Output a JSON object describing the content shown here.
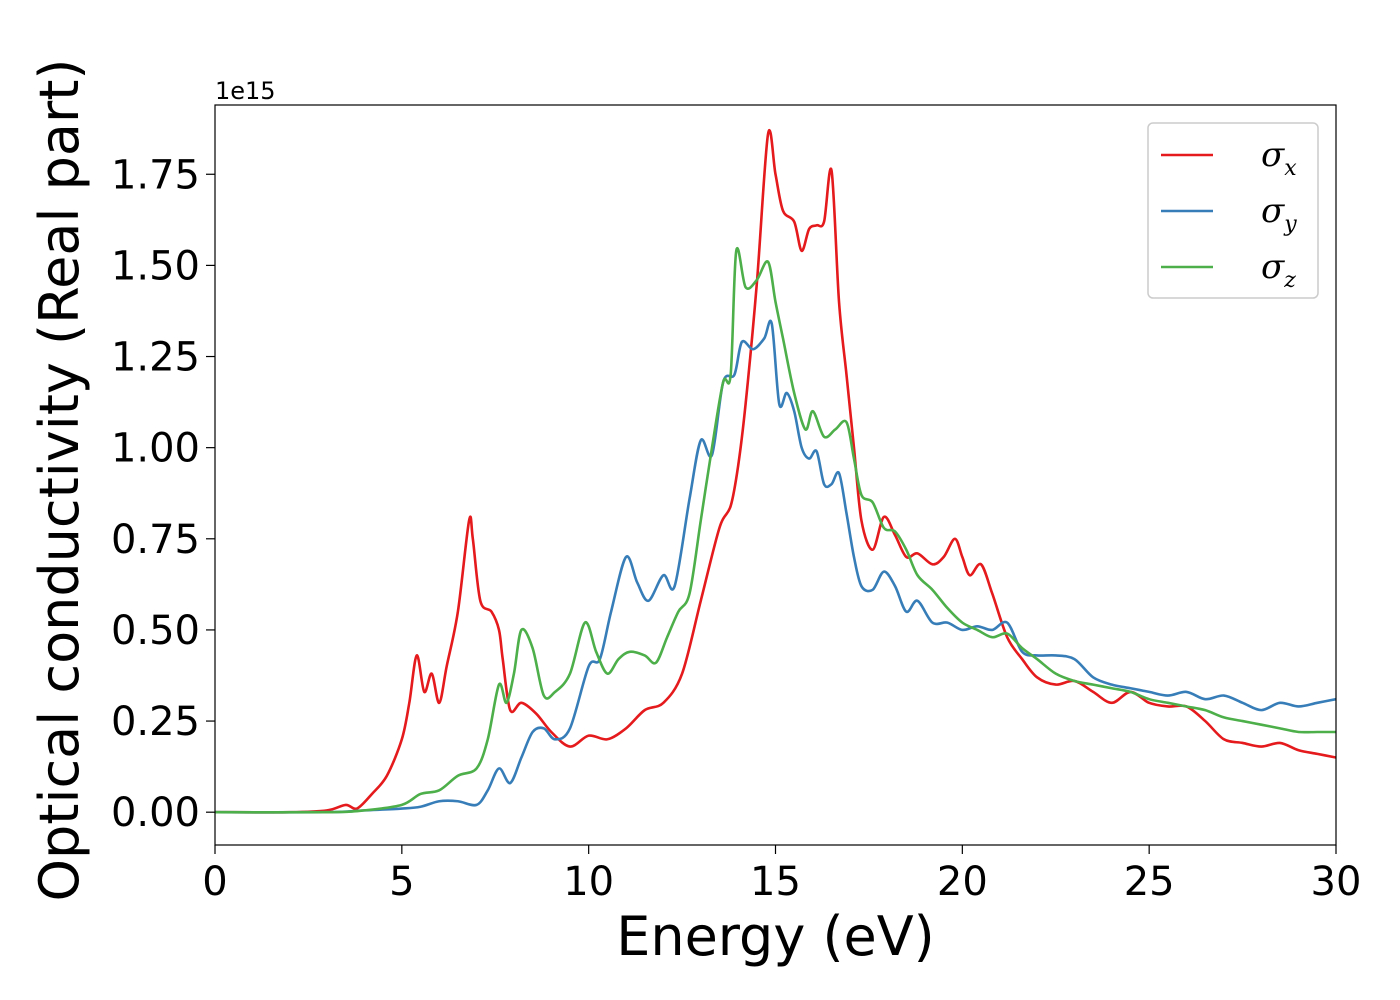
{
  "chart_data": {
    "type": "line",
    "xlabel": "Energy (eV)",
    "ylabel": "Optical conductivity (Real part)",
    "y_offset_label": "1e15",
    "xlim": [
      0,
      30
    ],
    "ylim": [
      -0.09,
      1.94
    ],
    "x_ticks": [
      0,
      5,
      10,
      15,
      20,
      25,
      30
    ],
    "x_tick_labels": [
      "0",
      "5",
      "10",
      "15",
      "20",
      "25",
      "30"
    ],
    "y_ticks": [
      0.0,
      0.25,
      0.5,
      0.75,
      1.0,
      1.25,
      1.5,
      1.75
    ],
    "y_tick_labels": [
      "0.00",
      "0.25",
      "0.50",
      "0.75",
      "1.00",
      "1.25",
      "1.50",
      "1.75"
    ],
    "grid": false,
    "legend_position": "top-right",
    "series": [
      {
        "name": "σx",
        "base": "σ",
        "sub": "x",
        "color": "#e41a1c",
        "x": [
          0,
          2,
          3,
          3.5,
          3.8,
          4.2,
          4.6,
          5.0,
          5.2,
          5.4,
          5.6,
          5.8,
          6.0,
          6.2,
          6.5,
          6.8,
          6.9,
          7.1,
          7.4,
          7.6,
          7.7,
          7.9,
          8.2,
          8.6,
          9.0,
          9.5,
          10.0,
          10.5,
          11.0,
          11.5,
          12.0,
          12.5,
          13.0,
          13.5,
          13.8,
          14.0,
          14.2,
          14.5,
          14.8,
          15.0,
          15.2,
          15.5,
          15.7,
          15.9,
          16.1,
          16.3,
          16.5,
          16.7,
          16.9,
          17.1,
          17.3,
          17.6,
          17.9,
          18.2,
          18.5,
          18.8,
          19.2,
          19.5,
          19.8,
          20.0,
          20.2,
          20.5,
          20.8,
          21.2,
          21.6,
          22.0,
          22.5,
          23.0,
          23.5,
          24.0,
          24.5,
          25.0,
          25.5,
          26.0,
          26.5,
          27.0,
          27.5,
          28.0,
          28.5,
          29.0,
          29.5,
          30.0
        ],
        "y": [
          0,
          0,
          0.005,
          0.02,
          0.01,
          0.05,
          0.1,
          0.2,
          0.3,
          0.43,
          0.33,
          0.38,
          0.3,
          0.4,
          0.55,
          0.8,
          0.75,
          0.58,
          0.55,
          0.5,
          0.42,
          0.28,
          0.3,
          0.27,
          0.22,
          0.18,
          0.21,
          0.2,
          0.23,
          0.28,
          0.3,
          0.38,
          0.58,
          0.78,
          0.84,
          0.95,
          1.12,
          1.45,
          1.86,
          1.75,
          1.65,
          1.62,
          1.54,
          1.6,
          1.61,
          1.62,
          1.76,
          1.4,
          1.2,
          1.0,
          0.8,
          0.72,
          0.81,
          0.76,
          0.7,
          0.71,
          0.68,
          0.7,
          0.75,
          0.7,
          0.65,
          0.68,
          0.6,
          0.48,
          0.42,
          0.37,
          0.35,
          0.36,
          0.33,
          0.3,
          0.33,
          0.3,
          0.29,
          0.29,
          0.25,
          0.2,
          0.19,
          0.18,
          0.19,
          0.17,
          0.16,
          0.15
        ]
      },
      {
        "name": "σy",
        "base": "σ",
        "sub": "y",
        "color": "#377eb8",
        "x": [
          0,
          3,
          4,
          5,
          5.5,
          6.0,
          6.5,
          7.0,
          7.3,
          7.6,
          7.9,
          8.2,
          8.5,
          8.8,
          9.1,
          9.5,
          10.0,
          10.3,
          10.6,
          11.0,
          11.3,
          11.6,
          12.0,
          12.3,
          12.7,
          13.0,
          13.3,
          13.6,
          13.9,
          14.1,
          14.4,
          14.7,
          14.9,
          15.1,
          15.3,
          15.5,
          15.7,
          15.9,
          16.1,
          16.3,
          16.5,
          16.7,
          16.9,
          17.1,
          17.3,
          17.6,
          17.9,
          18.2,
          18.5,
          18.8,
          19.2,
          19.6,
          20.0,
          20.4,
          20.8,
          21.2,
          21.6,
          22.0,
          22.5,
          23.0,
          23.5,
          24.0,
          24.5,
          25.0,
          25.5,
          26.0,
          26.5,
          27.0,
          27.5,
          28.0,
          28.5,
          29.0,
          29.5,
          30.0
        ],
        "y": [
          0,
          0,
          0.005,
          0.01,
          0.015,
          0.03,
          0.03,
          0.02,
          0.06,
          0.12,
          0.08,
          0.15,
          0.22,
          0.23,
          0.2,
          0.23,
          0.4,
          0.42,
          0.55,
          0.7,
          0.63,
          0.58,
          0.65,
          0.62,
          0.86,
          1.02,
          0.98,
          1.18,
          1.2,
          1.29,
          1.27,
          1.3,
          1.34,
          1.12,
          1.15,
          1.1,
          1.0,
          0.97,
          0.99,
          0.9,
          0.9,
          0.93,
          0.82,
          0.7,
          0.62,
          0.61,
          0.66,
          0.62,
          0.55,
          0.58,
          0.52,
          0.52,
          0.5,
          0.51,
          0.5,
          0.52,
          0.44,
          0.43,
          0.43,
          0.42,
          0.37,
          0.35,
          0.34,
          0.33,
          0.32,
          0.33,
          0.31,
          0.32,
          0.3,
          0.28,
          0.3,
          0.29,
          0.3,
          0.31
        ]
      },
      {
        "name": "σz",
        "base": "σ",
        "sub": "z",
        "color": "#4daf4a",
        "x": [
          0,
          3,
          4,
          5,
          5.5,
          6.0,
          6.5,
          7.0,
          7.3,
          7.6,
          7.8,
          8.0,
          8.2,
          8.5,
          8.8,
          9.1,
          9.5,
          9.9,
          10.2,
          10.5,
          10.8,
          11.1,
          11.5,
          11.8,
          12.1,
          12.4,
          12.7,
          13.0,
          13.3,
          13.6,
          13.8,
          13.95,
          14.2,
          14.5,
          14.8,
          15.0,
          15.2,
          15.5,
          15.8,
          16.0,
          16.3,
          16.6,
          16.9,
          17.1,
          17.3,
          17.6,
          17.9,
          18.2,
          18.5,
          18.8,
          19.2,
          19.6,
          20.0,
          20.4,
          20.8,
          21.2,
          21.6,
          22.0,
          22.5,
          23.0,
          23.5,
          24.0,
          24.5,
          25.0,
          25.5,
          26.0,
          26.5,
          27.0,
          27.5,
          28.0,
          28.5,
          29.0,
          29.5,
          30.0
        ],
        "y": [
          0,
          0,
          0.005,
          0.02,
          0.05,
          0.06,
          0.1,
          0.12,
          0.2,
          0.35,
          0.3,
          0.38,
          0.5,
          0.45,
          0.32,
          0.33,
          0.38,
          0.52,
          0.44,
          0.38,
          0.42,
          0.44,
          0.43,
          0.41,
          0.48,
          0.55,
          0.6,
          0.8,
          1.0,
          1.18,
          1.2,
          1.54,
          1.44,
          1.46,
          1.51,
          1.4,
          1.3,
          1.15,
          1.05,
          1.1,
          1.03,
          1.05,
          1.07,
          0.97,
          0.87,
          0.85,
          0.78,
          0.77,
          0.72,
          0.65,
          0.61,
          0.56,
          0.52,
          0.5,
          0.48,
          0.49,
          0.45,
          0.42,
          0.38,
          0.36,
          0.35,
          0.34,
          0.33,
          0.31,
          0.3,
          0.29,
          0.28,
          0.26,
          0.25,
          0.24,
          0.23,
          0.22,
          0.22,
          0.22
        ]
      }
    ]
  }
}
